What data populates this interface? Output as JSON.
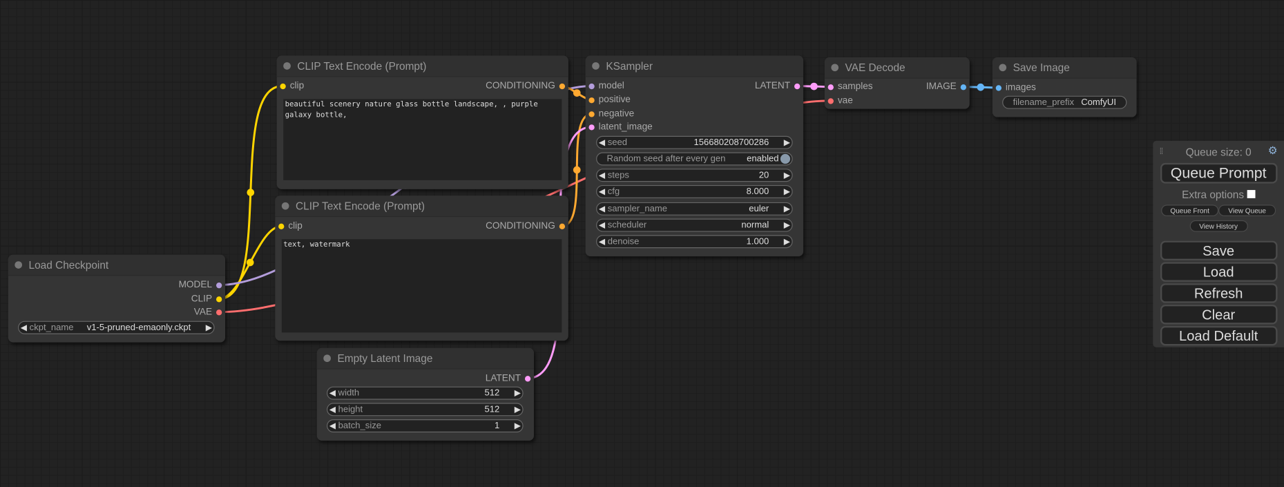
{
  "slot_colors": {
    "MODEL": "#b39ddb",
    "CLIP": "#ffd500",
    "VAE": "#ff6e6e",
    "CONDITIONING": "#ffa931",
    "LATENT": "#ff9cf9",
    "IMAGE": "#64b5f6"
  },
  "nodes": {
    "load_checkpoint": {
      "title": "Load Checkpoint",
      "outputs": [
        "MODEL",
        "CLIP",
        "VAE"
      ],
      "ckpt_name_label": "ckpt_name",
      "ckpt_name": "v1-5-pruned-emaonly.ckpt"
    },
    "clip_pos": {
      "title": "CLIP Text Encode (Prompt)",
      "input": "clip",
      "output": "CONDITIONING",
      "text": "beautiful scenery nature glass bottle landscape, , purple galaxy bottle,"
    },
    "clip_neg": {
      "title": "CLIP Text Encode (Prompt)",
      "input": "clip",
      "output": "CONDITIONING",
      "text": "text, watermark"
    },
    "empty_latent": {
      "title": "Empty Latent Image",
      "output": "LATENT",
      "widgets": [
        {
          "label": "width",
          "value": "512"
        },
        {
          "label": "height",
          "value": "512"
        },
        {
          "label": "batch_size",
          "value": "1"
        }
      ]
    },
    "ksampler": {
      "title": "KSampler",
      "inputs": [
        "model",
        "positive",
        "negative",
        "latent_image"
      ],
      "output": "LATENT",
      "seed": {
        "label": "seed",
        "value": "156680208700286"
      },
      "random_seed": {
        "label": "Random seed after every gen",
        "value": "enabled"
      },
      "widgets": [
        {
          "label": "steps",
          "value": "20"
        },
        {
          "label": "cfg",
          "value": "8.000"
        },
        {
          "label": "sampler_name",
          "value": "euler"
        },
        {
          "label": "scheduler",
          "value": "normal"
        },
        {
          "label": "denoise",
          "value": "1.000"
        }
      ]
    },
    "vae_decode": {
      "title": "VAE Decode",
      "inputs": [
        "samples",
        "vae"
      ],
      "output": "IMAGE"
    },
    "save_image": {
      "title": "Save Image",
      "input": "images",
      "filename_prefix_label": "filename_prefix",
      "filename_prefix": "ComfyUI"
    }
  },
  "panel": {
    "queue_size": "Queue size: 0",
    "queue_prompt": "Queue Prompt",
    "extra_options": "Extra options",
    "queue_front": "Queue Front",
    "view_queue": "View Queue",
    "view_history": "View History",
    "save": "Save",
    "load": "Load",
    "refresh": "Refresh",
    "clear": "Clear",
    "load_default": "Load Default"
  }
}
